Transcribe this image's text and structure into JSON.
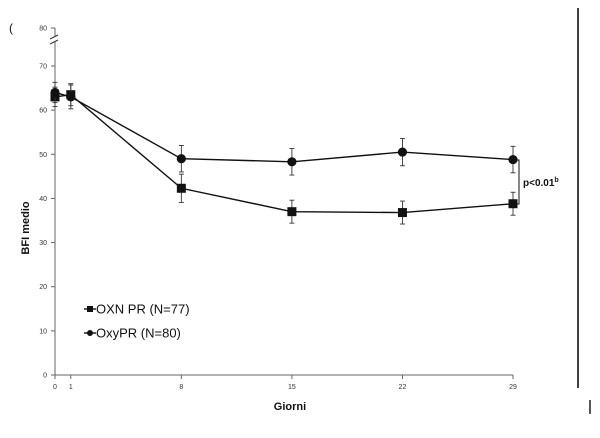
{
  "chart_data": {
    "type": "line",
    "panel_label": "(",
    "xlabel": "Giorni",
    "ylabel": "BFI medio",
    "x": [
      0,
      1,
      8,
      15,
      22,
      29
    ],
    "x_tick_labels": [
      "0",
      "1",
      "8",
      "15",
      "22",
      "29"
    ],
    "xlim": [
      0,
      29
    ],
    "ylim": [
      0,
      70
    ],
    "y_ticks": [
      0,
      10,
      20,
      30,
      40,
      50,
      60,
      70
    ],
    "y_tick_labels": [
      "0",
      "10",
      "20",
      "30",
      "40",
      "50",
      "60",
      "70"
    ],
    "y_break_label": "80",
    "series": [
      {
        "name": "OXN PR (N=77)",
        "marker": "square",
        "values": [
          63,
          63.5,
          42.3,
          37,
          36.8,
          38.8
        ],
        "errors": [
          2.2,
          2.5,
          3.2,
          2.6,
          2.6,
          2.6
        ]
      },
      {
        "name": "OxyPR (N=80)",
        "marker": "circle",
        "values": [
          64,
          63,
          49,
          48.3,
          50.5,
          48.8
        ],
        "errors": [
          2.3,
          2.7,
          3,
          3,
          3.1,
          3
        ]
      }
    ],
    "annotation": {
      "text": "p<0.01",
      "superscript": "b"
    },
    "legend_position": "bottom-left",
    "grid": false,
    "line_color": "#111111"
  }
}
